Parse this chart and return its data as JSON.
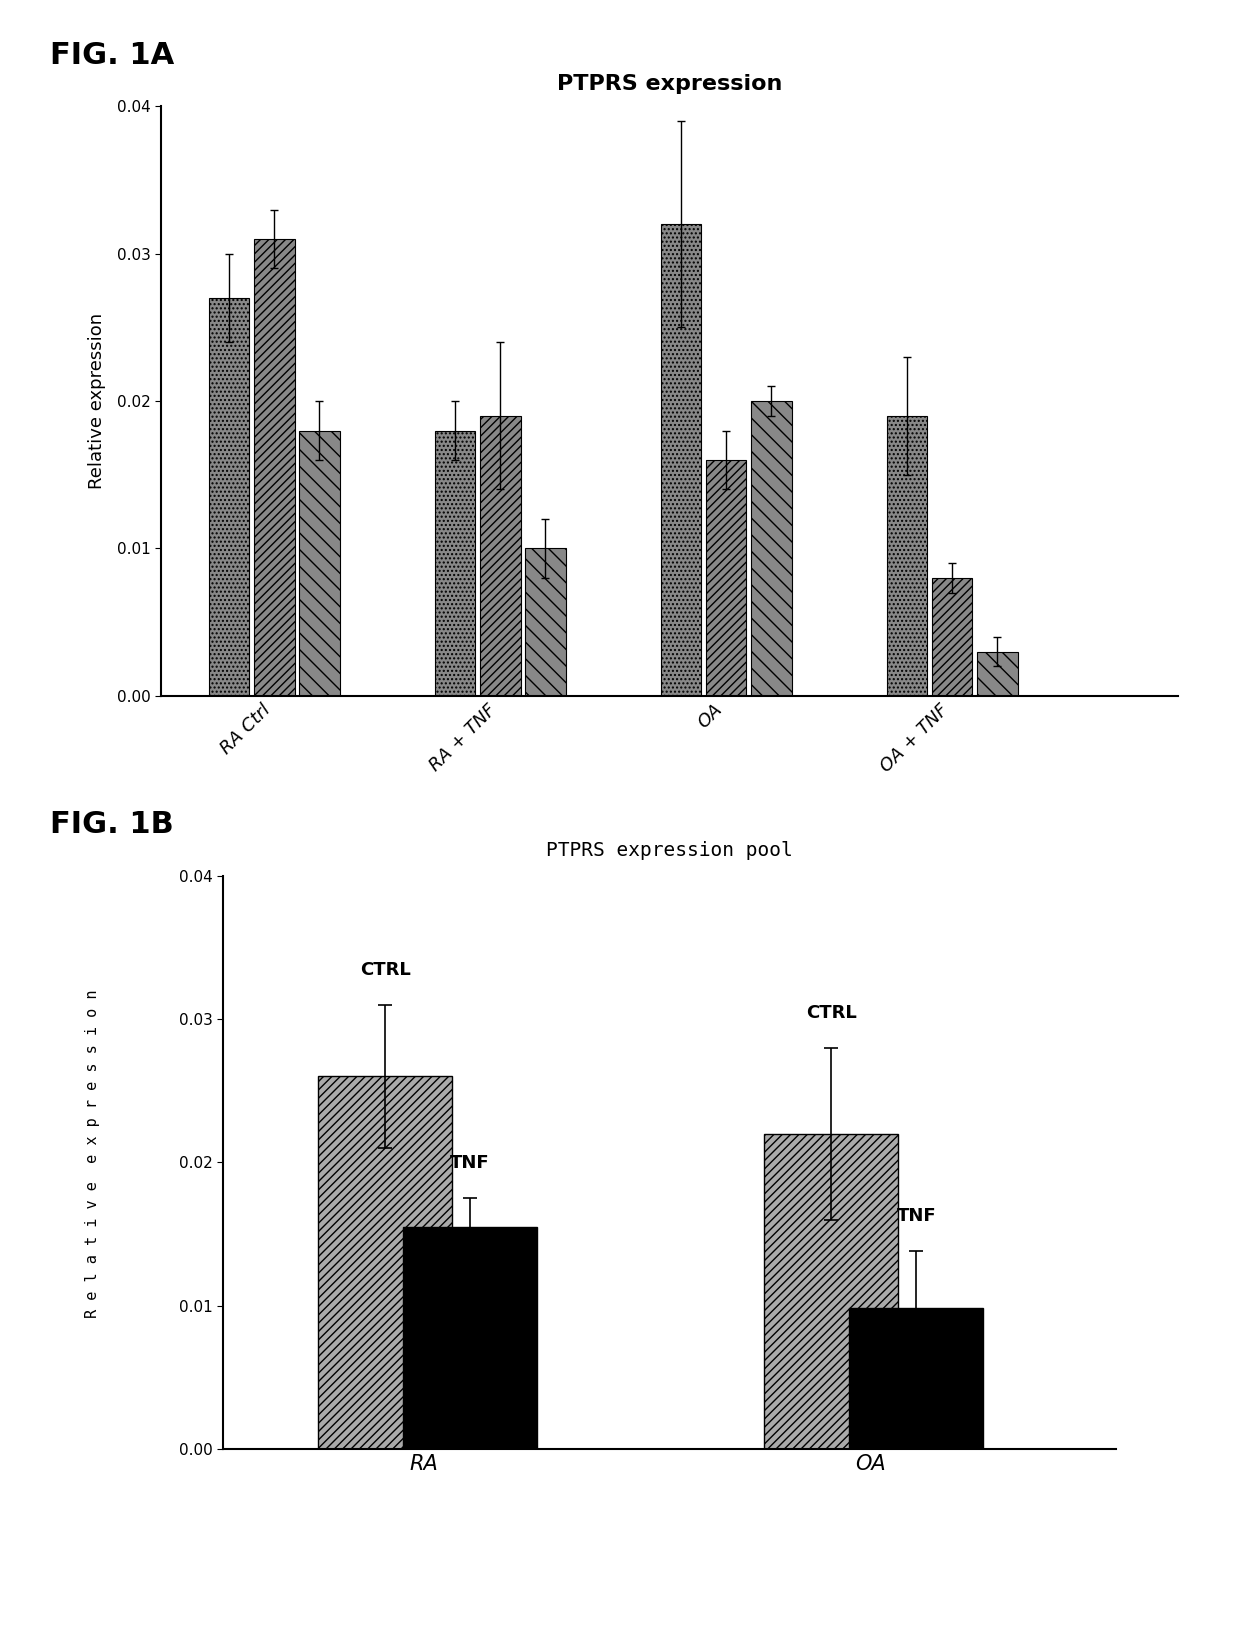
{
  "fig1a_title": "PTPRS expression",
  "fig1b_title": "PTPRS expression pool",
  "ylabel": "Relative expression",
  "fig1a_groups": [
    "RA Ctrl",
    "RA + TNF",
    "OA",
    "OA + TNF"
  ],
  "fig1a_group_data": [
    {
      "vals": [
        0.027,
        0.031,
        0.018
      ],
      "errs": [
        0.003,
        0.002,
        0.002
      ]
    },
    {
      "vals": [
        0.018,
        0.019,
        0.01
      ],
      "errs": [
        0.002,
        0.005,
        0.002
      ]
    },
    {
      "vals": [
        0.032,
        0.016,
        0.02
      ],
      "errs": [
        0.007,
        0.002,
        0.001
      ]
    },
    {
      "vals": [
        0.019,
        0.008,
        0.003
      ],
      "errs": [
        0.004,
        0.001,
        0.001
      ]
    }
  ],
  "fig1a_hatch_styles": [
    "....",
    "////",
    "\\\\\\\\"
  ],
  "fig1a_bar_colors": [
    "#555555",
    "#777777",
    "#999999"
  ],
  "fig1a_ylim": [
    0,
    0.04
  ],
  "fig1a_yticks": [
    0.0,
    0.01,
    0.02,
    0.03,
    0.04
  ],
  "fig1b_groups": [
    "RA",
    "OA"
  ],
  "fig1b_ctrl_values": [
    0.026,
    0.022
  ],
  "fig1b_ctrl_errors": [
    0.005,
    0.006
  ],
  "fig1b_tnf_values": [
    0.0155,
    0.0098
  ],
  "fig1b_tnf_errors": [
    0.002,
    0.004
  ],
  "fig1b_ylim": [
    0,
    0.04
  ],
  "fig1b_yticks": [
    0.0,
    0.01,
    0.02,
    0.03,
    0.04
  ],
  "background_color": "#ffffff"
}
